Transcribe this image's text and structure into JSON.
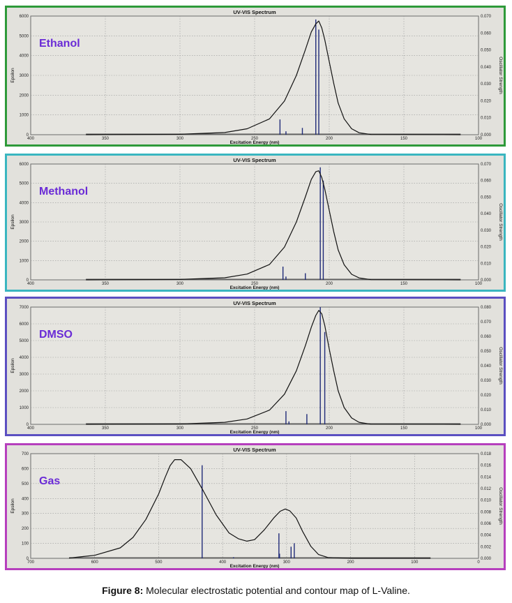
{
  "caption": {
    "label": "Figure 8:",
    "text": "Molecular electrostatic potential and contour map of L-Valine."
  },
  "chart_data": [
    {
      "type": "line",
      "panel_label": "Ethanol",
      "border_color": "#2e9a3a",
      "label_color": "#6a2bd6",
      "title": "UV-VIS Spectrum",
      "xlabel": "Excitation Energy (nm)",
      "ylabel": "Epsilon",
      "y2label": "Oscillator Strength",
      "xlim": [
        400,
        100
      ],
      "ylim": [
        0,
        6000
      ],
      "y2lim": [
        0,
        0.07
      ],
      "x_ticks": [
        "400",
        "350",
        "300",
        "250",
        "200",
        "150",
        "100"
      ],
      "x_tick_values": [
        400,
        350,
        300,
        250,
        200,
        150,
        100
      ],
      "y_ticks": [
        "0",
        "1000",
        "2000",
        "3000",
        "4000",
        "5000",
        "6000"
      ],
      "y2_ticks": [
        "0.000",
        "0.010",
        "0.020",
        "0.030",
        "0.040",
        "0.050",
        "0.060",
        "0.070"
      ],
      "baseline_x": [
        363,
        112
      ],
      "curve": {
        "x": [
          363,
          300,
          270,
          255,
          240,
          230,
          222,
          216,
          212,
          209,
          207,
          205,
          203,
          200,
          197,
          194,
          190,
          185,
          180,
          172,
          112
        ],
        "y": [
          0,
          20,
          110,
          300,
          800,
          1700,
          3000,
          4300,
          5200,
          5600,
          5750,
          5400,
          4800,
          3700,
          2600,
          1600,
          800,
          300,
          100,
          10,
          0
        ]
      },
      "sticks": {
        "x": [
          233,
          229,
          218,
          209,
          207
        ],
        "strength": [
          0.009,
          0.002,
          0.004,
          0.068,
          0.062
        ]
      }
    },
    {
      "type": "line",
      "panel_label": "Methanol",
      "border_color": "#3ab6c0",
      "label_color": "#6a2bd6",
      "title": "UV-VIS Spectrum",
      "xlabel": "Excitation Energy (nm)",
      "ylabel": "Epsilon",
      "y2label": "Oscillator Strength",
      "xlim": [
        400,
        100
      ],
      "ylim": [
        0,
        6000
      ],
      "y2lim": [
        0,
        0.07
      ],
      "x_ticks": [
        "400",
        "350",
        "300",
        "250",
        "200",
        "150",
        "100"
      ],
      "x_tick_values": [
        400,
        350,
        300,
        250,
        200,
        150,
        100
      ],
      "y_ticks": [
        "0",
        "1000",
        "2000",
        "3000",
        "4000",
        "5000",
        "6000"
      ],
      "y2_ticks": [
        "0.000",
        "0.010",
        "0.020",
        "0.030",
        "0.040",
        "0.050",
        "0.060",
        "0.070"
      ],
      "baseline_x": [
        363,
        112
      ],
      "curve": {
        "x": [
          363,
          300,
          270,
          255,
          240,
          230,
          222,
          216,
          212,
          209,
          207,
          205,
          203,
          200,
          197,
          194,
          190,
          185,
          180,
          172,
          112
        ],
        "y": [
          0,
          20,
          110,
          300,
          800,
          1700,
          3000,
          4300,
          5200,
          5600,
          5650,
          5300,
          4700,
          3600,
          2500,
          1550,
          780,
          290,
          100,
          10,
          0
        ]
      },
      "sticks": {
        "x": [
          231,
          229,
          216,
          206,
          204
        ],
        "strength": [
          0.008,
          0.002,
          0.004,
          0.068,
          0.06
        ]
      }
    },
    {
      "type": "line",
      "panel_label": "DMSO",
      "border_color": "#5b4fc1",
      "label_color": "#6a2bd6",
      "title": "UV-VIS Spectrum",
      "xlabel": "Excitation Energy (nm)",
      "ylabel": "Epsilon",
      "y2label": "Oscillator Strength",
      "xlim": [
        400,
        100
      ],
      "ylim": [
        0,
        7000
      ],
      "y2lim": [
        0,
        0.08
      ],
      "x_ticks": [
        "400",
        "350",
        "300",
        "250",
        "200",
        "150",
        "100"
      ],
      "x_tick_values": [
        400,
        350,
        300,
        250,
        200,
        150,
        100
      ],
      "y_ticks": [
        "0",
        "1000",
        "2000",
        "3000",
        "4000",
        "5000",
        "6000",
        "7000"
      ],
      "y2_ticks": [
        "0.000",
        "0.010",
        "0.020",
        "0.030",
        "0.040",
        "0.050",
        "0.060",
        "0.070",
        "0.080"
      ],
      "baseline_x": [
        363,
        112
      ],
      "curve": {
        "x": [
          363,
          300,
          270,
          255,
          240,
          230,
          222,
          216,
          212,
          209,
          207,
          205,
          203,
          200,
          197,
          194,
          190,
          185,
          180,
          172,
          112
        ],
        "y": [
          0,
          20,
          120,
          320,
          850,
          1800,
          3200,
          4700,
          5800,
          6500,
          6800,
          6600,
          5900,
          4500,
          3200,
          2000,
          1000,
          380,
          120,
          10,
          0
        ]
      },
      "sticks": {
        "x": [
          229,
          227,
          215,
          206,
          203
        ],
        "strength": [
          0.009,
          0.002,
          0.007,
          0.08,
          0.063
        ]
      }
    },
    {
      "type": "line",
      "panel_label": "Gas",
      "border_color": "#b63fbd",
      "label_color": "#6a2bd6",
      "title": "UV-VIS Spectrum",
      "xlabel": "Excitation Energy (nm)",
      "ylabel": "Epsilon",
      "y2label": "Oscillator Strength",
      "xlim": [
        700,
        0
      ],
      "ylim": [
        0,
        700
      ],
      "y2lim": [
        0,
        0.018
      ],
      "x_ticks": [
        "700",
        "600",
        "500",
        "400",
        "300",
        "200",
        "100",
        "0"
      ],
      "x_tick_values": [
        700,
        600,
        500,
        400,
        300,
        200,
        100,
        0
      ],
      "y_ticks": [
        "0",
        "100",
        "200",
        "300",
        "400",
        "500",
        "600",
        "700"
      ],
      "y2_ticks": [
        "0.000",
        "0.002",
        "0.004",
        "0.006",
        "0.008",
        "0.010",
        "0.012",
        "0.014",
        "0.016",
        "0.018"
      ],
      "baseline_x": [
        640,
        75
      ],
      "curve": {
        "x": [
          640,
          600,
          560,
          540,
          520,
          500,
          490,
          482,
          475,
          465,
          450,
          430,
          410,
          390,
          375,
          362,
          350,
          335,
          320,
          310,
          302,
          295,
          285,
          275,
          262,
          250,
          235,
          200,
          75
        ],
        "y": [
          2,
          20,
          70,
          140,
          260,
          430,
          540,
          620,
          660,
          660,
          600,
          450,
          290,
          170,
          130,
          115,
          125,
          190,
          270,
          315,
          330,
          318,
          270,
          180,
          80,
          25,
          5,
          0,
          0
        ]
      },
      "sticks": {
        "x": [
          432,
          383,
          312,
          311,
          293,
          288
        ],
        "strength": [
          0.016,
          0.0002,
          0.0043,
          0.0008,
          0.002,
          0.0026
        ]
      }
    }
  ]
}
